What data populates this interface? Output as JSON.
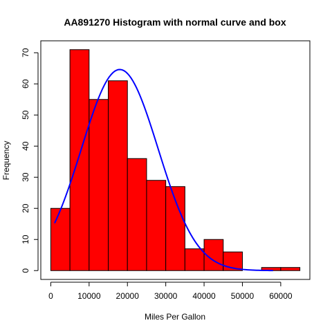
{
  "chart_data": {
    "type": "bar",
    "title": "AA891270 Histogram with normal curve and box",
    "xlabel": "Miles Per Gallon",
    "ylabel": "Frequency",
    "bins": [
      {
        "start": 0,
        "end": 5000,
        "count": 20
      },
      {
        "start": 5000,
        "end": 10000,
        "count": 71
      },
      {
        "start": 10000,
        "end": 15000,
        "count": 55
      },
      {
        "start": 15000,
        "end": 20000,
        "count": 61
      },
      {
        "start": 20000,
        "end": 25000,
        "count": 36
      },
      {
        "start": 25000,
        "end": 30000,
        "count": 29
      },
      {
        "start": 30000,
        "end": 35000,
        "count": 27
      },
      {
        "start": 35000,
        "end": 40000,
        "count": 7
      },
      {
        "start": 40000,
        "end": 45000,
        "count": 10
      },
      {
        "start": 45000,
        "end": 50000,
        "count": 6
      },
      {
        "start": 50000,
        "end": 55000,
        "count": 0
      },
      {
        "start": 55000,
        "end": 60000,
        "count": 1
      },
      {
        "start": 60000,
        "end": 65000,
        "count": 1
      }
    ],
    "xlim": [
      -2600,
      67600
    ],
    "ylim": [
      -2.84,
      73.84
    ],
    "xticks": [
      0,
      10000,
      20000,
      30000,
      40000,
      50000,
      60000
    ],
    "yticks": [
      0,
      10,
      20,
      30,
      40,
      50,
      60,
      70
    ],
    "normal_curve": {
      "mean": 18000,
      "sd": 10000,
      "bin_width": 5000,
      "n": 324,
      "x_range": [
        1000,
        58000
      ]
    },
    "colors": {
      "bar_fill": "#ff0000",
      "bar_stroke": "#000000",
      "curve": "#0000ff"
    },
    "grid": false,
    "box": true
  }
}
